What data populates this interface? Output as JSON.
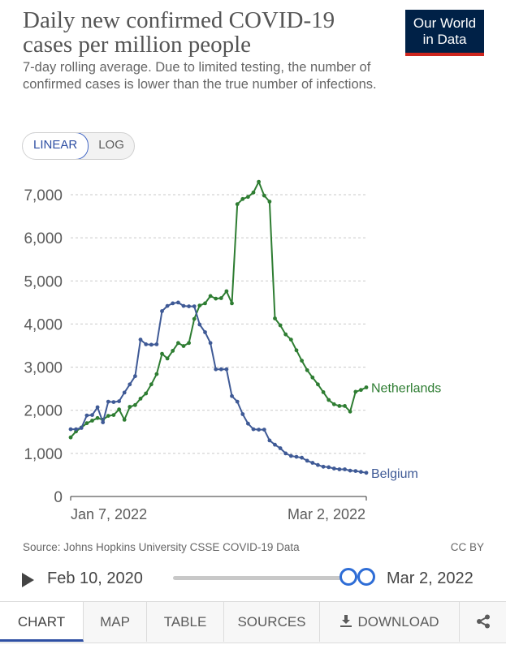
{
  "header": {
    "title": "Daily new confirmed COVID-19 cases per million people",
    "subtitle": "7-day rolling average. Due to limited testing, the number of confirmed cases is lower than the true number of infections.",
    "logo_line1": "Our World",
    "logo_line2": "in Data"
  },
  "scale_toggle": {
    "linear": "LINEAR",
    "log": "LOG",
    "selected": "LINEAR"
  },
  "chart_data": {
    "type": "line",
    "title": "Daily new confirmed COVID-19 cases per million people",
    "ylim": [
      0,
      7000
    ],
    "yticks": [
      0,
      1000,
      2000,
      3000,
      4000,
      5000,
      6000,
      7000
    ],
    "ytick_labels": [
      "0",
      "1,000",
      "2,000",
      "3,000",
      "4,000",
      "5,000",
      "6,000",
      "7,000"
    ],
    "x_start_label": "Jan 7, 2022",
    "x_end_label": "Mar 2, 2022",
    "grid": true,
    "colors": {
      "Netherlands": "#2e7d32",
      "Belgium": "#3f5a96"
    },
    "series": [
      {
        "name": "Netherlands",
        "values": [
          1370,
          1510,
          1600,
          1700,
          1760,
          1820,
          1780,
          1870,
          1890,
          2020,
          1780,
          2080,
          2120,
          2270,
          2390,
          2600,
          2840,
          3310,
          3200,
          3380,
          3560,
          3490,
          3560,
          4120,
          4430,
          4480,
          4650,
          4590,
          4600,
          4760,
          4480,
          6780,
          6900,
          6950,
          7050,
          7300,
          6980,
          6840,
          4130,
          3970,
          3760,
          3640,
          3390,
          3150,
          2930,
          2760,
          2600,
          2420,
          2240,
          2140,
          2100,
          2100,
          1970,
          2430,
          2470,
          2530
        ]
      },
      {
        "name": "Belgium",
        "values": [
          1560,
          1560,
          1590,
          1880,
          1890,
          2070,
          1720,
          2200,
          2190,
          2210,
          2410,
          2600,
          2790,
          3640,
          3530,
          3520,
          3530,
          4300,
          4420,
          4480,
          4500,
          4420,
          4410,
          4410,
          3990,
          3810,
          3560,
          2950,
          2950,
          2950,
          2330,
          2200,
          1910,
          1690,
          1560,
          1550,
          1550,
          1300,
          1200,
          1120,
          1000,
          940,
          920,
          900,
          830,
          780,
          730,
          690,
          680,
          650,
          630,
          630,
          600,
          590,
          570,
          550
        ]
      }
    ]
  },
  "footer": {
    "source": "Source: Johns Hopkins University CSSE COVID-19 Data",
    "license": "CC BY"
  },
  "timeline": {
    "start_label": "Feb 10, 2020",
    "end_label": "Mar 2, 2022"
  },
  "tabs": {
    "chart": "CHART",
    "map": "MAP",
    "table": "TABLE",
    "sources": "SOURCES",
    "download": "DOWNLOAD",
    "selected": "CHART"
  }
}
